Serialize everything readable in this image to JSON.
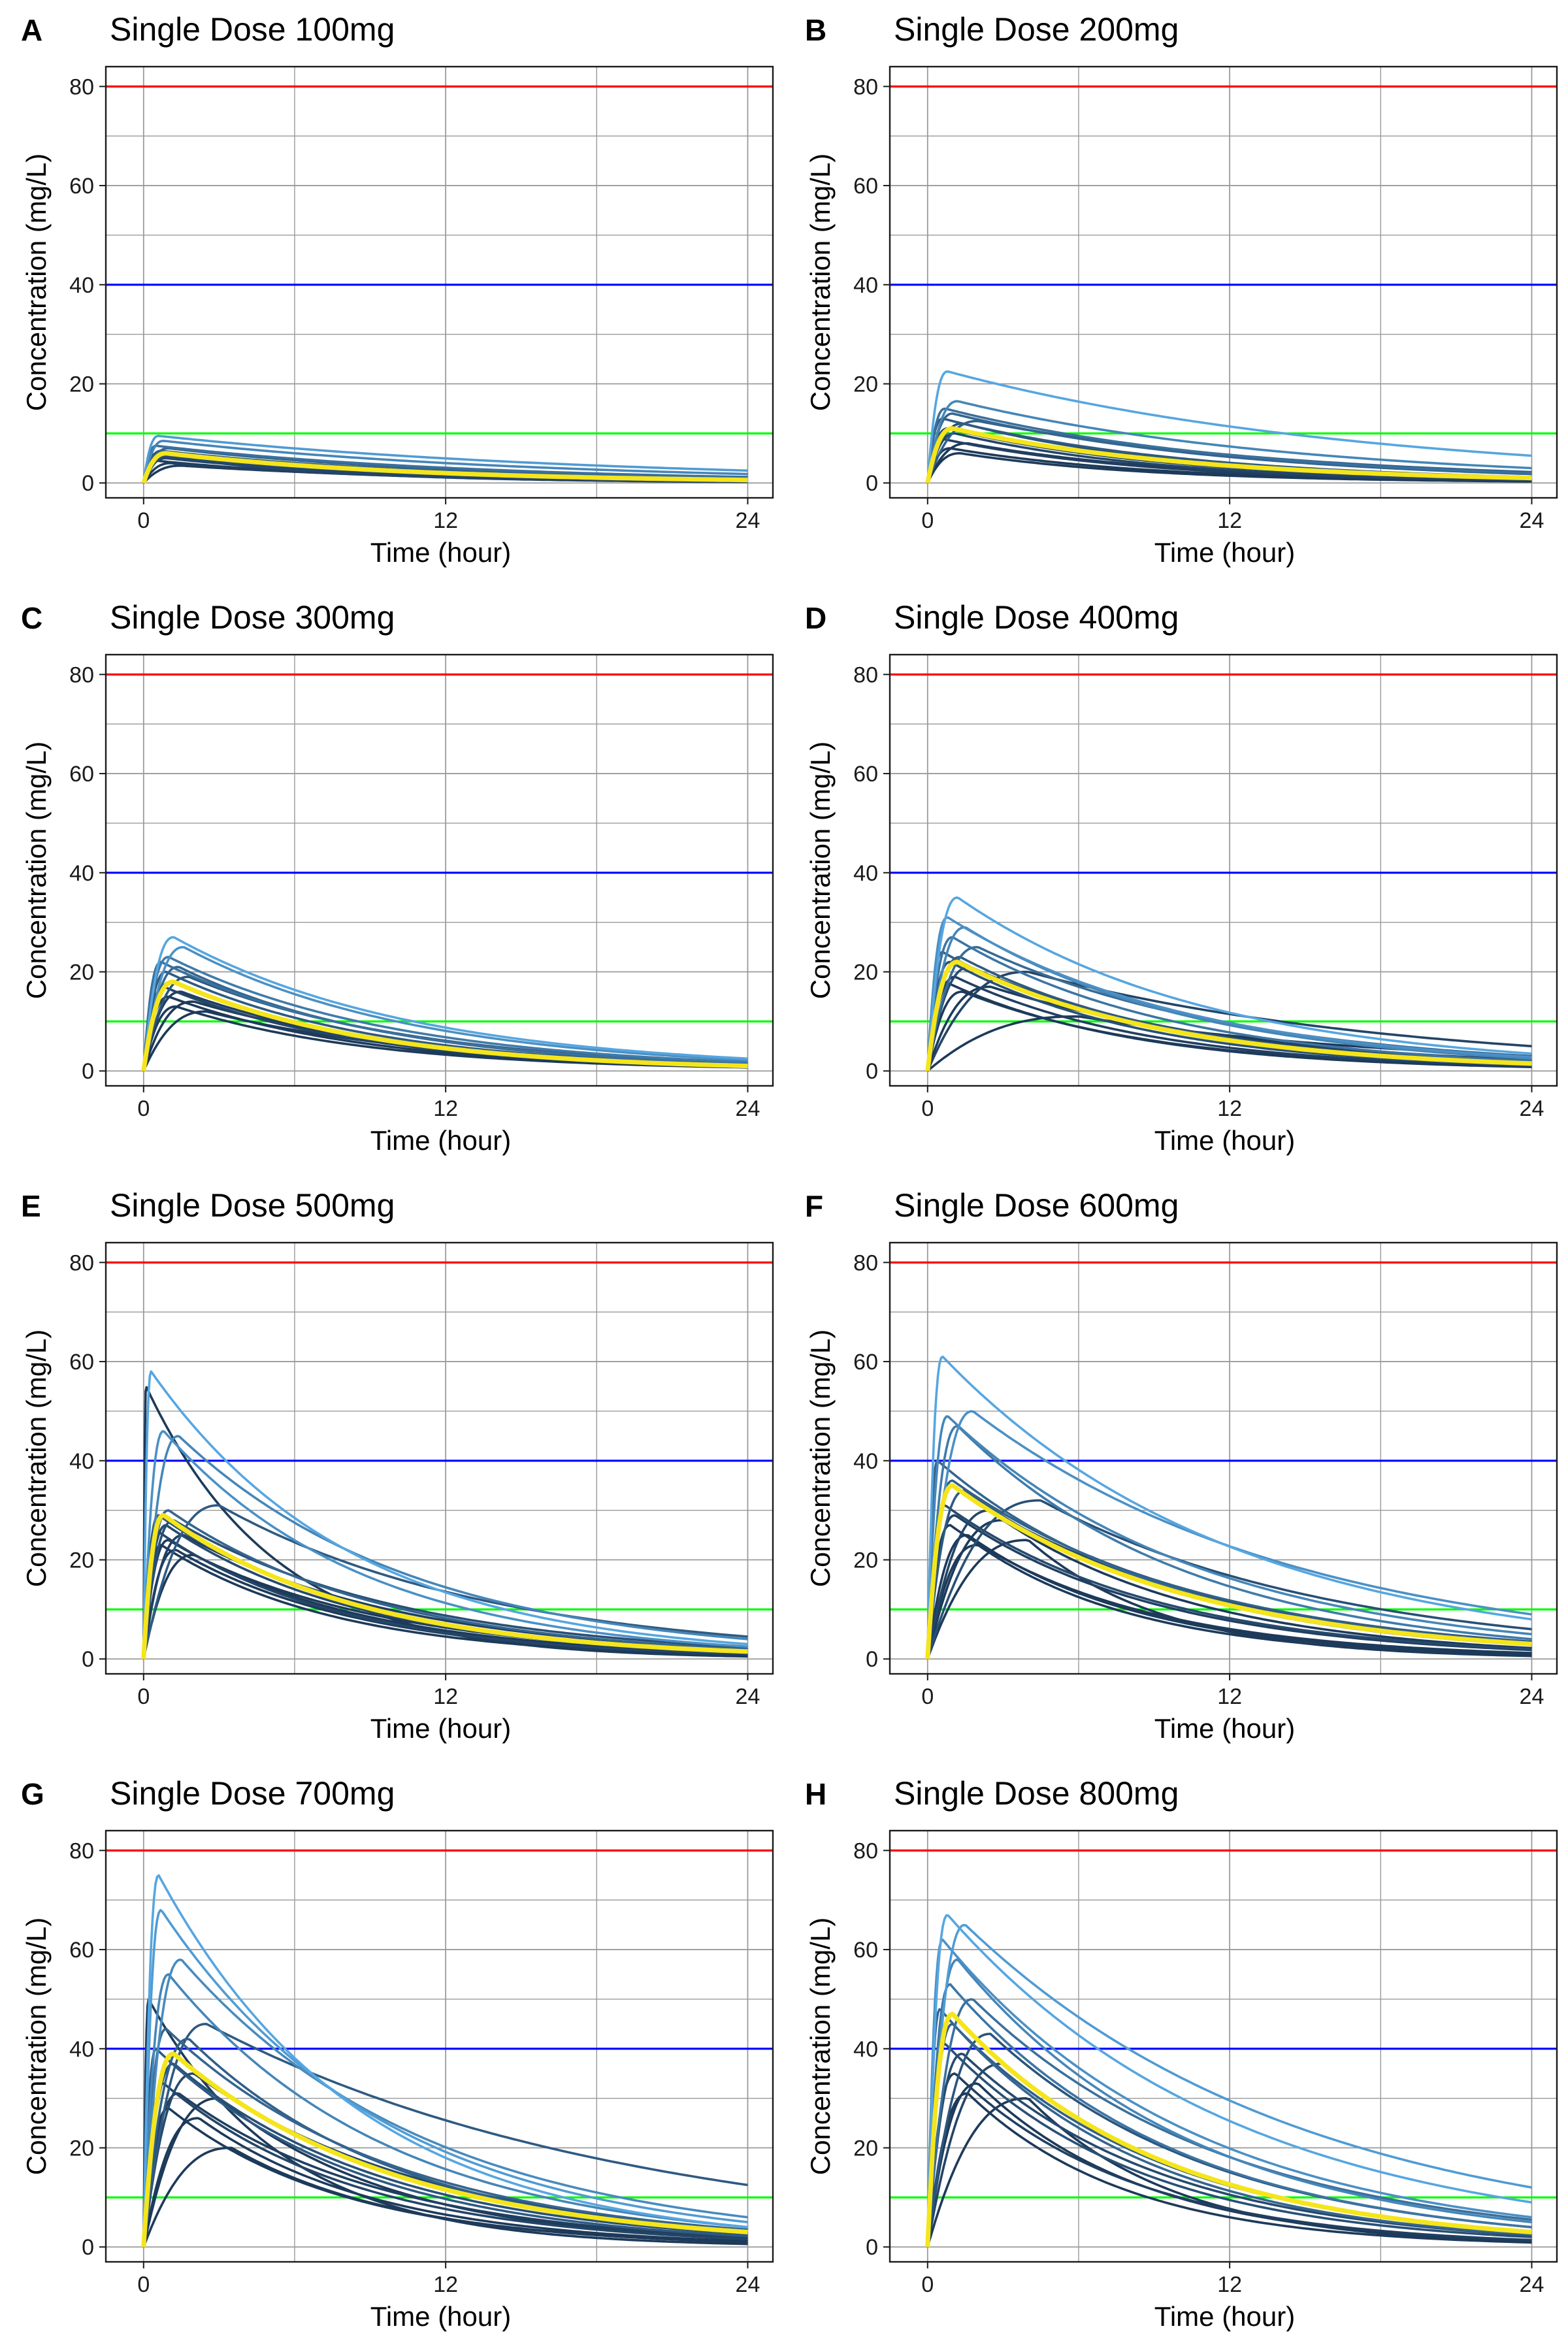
{
  "figure": {
    "colors": {
      "max_line": "#ff0000",
      "mid_line": "#0000ff",
      "min_line": "#00ff00",
      "mean_curve": "#f5e51b",
      "individual_dark": "#1d3a5a",
      "individual_light": "#56a6e0",
      "grid": "#9a9a9a",
      "border": "#1a1a1a"
    }
  },
  "chart_data": [
    {
      "type": "line",
      "panel": "A",
      "title": "Single Dose 100mg",
      "xlabel": "Time (hour)",
      "ylabel": "Concentration (mg/L)",
      "xlim": [
        -1.5,
        25
      ],
      "ylim": [
        -3,
        84
      ],
      "xticks": [
        0,
        12,
        24
      ],
      "yticks": [
        0,
        20,
        40,
        60,
        80
      ],
      "reference_lines": [
        80,
        40,
        10
      ],
      "mean": {
        "cmax": 6,
        "tmax": 0.9,
        "c24": 0.6
      },
      "subjects": [
        {
          "cmax": 9.5,
          "tmax": 0.6,
          "c24": 2.5,
          "shade": 0.9
        },
        {
          "cmax": 8.5,
          "tmax": 0.8,
          "c24": 1.8,
          "shade": 0.7
        },
        {
          "cmax": 7.5,
          "tmax": 0.5,
          "c24": 1.2,
          "shade": 0.5
        },
        {
          "cmax": 7,
          "tmax": 1.0,
          "c24": 1.0,
          "shade": 0.4
        },
        {
          "cmax": 6.5,
          "tmax": 0.7,
          "c24": 0.8,
          "shade": 0.3
        },
        {
          "cmax": 6,
          "tmax": 1.2,
          "c24": 0.6,
          "shade": 0.2
        },
        {
          "cmax": 5.5,
          "tmax": 0.6,
          "c24": 0.5,
          "shade": 0.15
        },
        {
          "cmax": 5,
          "tmax": 0.9,
          "c24": 0.4,
          "shade": 0.1
        },
        {
          "cmax": 4.5,
          "tmax": 0.5,
          "c24": 0.3,
          "shade": 0.05
        },
        {
          "cmax": 4,
          "tmax": 1.1,
          "c24": 0.3,
          "shade": 0.05
        },
        {
          "cmax": 3.5,
          "tmax": 1.5,
          "c24": 0.4,
          "shade": 0.0
        },
        {
          "cmax": 5.8,
          "tmax": 0.4,
          "c24": 0.2,
          "shade": 0.1
        }
      ]
    },
    {
      "type": "line",
      "panel": "B",
      "title": "Single Dose 200mg",
      "xlabel": "Time (hour)",
      "ylabel": "Concentration (mg/L)",
      "xlim": [
        -1.5,
        25
      ],
      "ylim": [
        -3,
        84
      ],
      "xticks": [
        0,
        12,
        24
      ],
      "yticks": [
        0,
        20,
        40,
        60,
        80
      ],
      "reference_lines": [
        80,
        40,
        10
      ],
      "mean": {
        "cmax": 11,
        "tmax": 1.0,
        "c24": 1.0
      },
      "subjects": [
        {
          "cmax": 22.5,
          "tmax": 0.8,
          "c24": 5.5,
          "shade": 1.0
        },
        {
          "cmax": 16.5,
          "tmax": 1.2,
          "c24": 3.0,
          "shade": 0.7
        },
        {
          "cmax": 15,
          "tmax": 0.7,
          "c24": 2.0,
          "shade": 0.5
        },
        {
          "cmax": 14,
          "tmax": 1.0,
          "c24": 1.8,
          "shade": 0.4
        },
        {
          "cmax": 13,
          "tmax": 0.6,
          "c24": 1.2,
          "shade": 0.3
        },
        {
          "cmax": 12,
          "tmax": 1.4,
          "c24": 1.0,
          "shade": 0.2
        },
        {
          "cmax": 11,
          "tmax": 0.8,
          "c24": 0.8,
          "shade": 0.15
        },
        {
          "cmax": 10,
          "tmax": 1.1,
          "c24": 0.6,
          "shade": 0.1
        },
        {
          "cmax": 9,
          "tmax": 0.5,
          "c24": 0.5,
          "shade": 0.05
        },
        {
          "cmax": 8,
          "tmax": 1.6,
          "c24": 0.6,
          "shade": 0.0
        },
        {
          "cmax": 7,
          "tmax": 0.9,
          "c24": 0.4,
          "shade": 0.0
        },
        {
          "cmax": 12.5,
          "tmax": 2.0,
          "c24": 2.2,
          "shade": 0.35
        },
        {
          "cmax": 6,
          "tmax": 1.3,
          "c24": 0.3,
          "shade": 0.0
        }
      ]
    },
    {
      "type": "line",
      "panel": "C",
      "title": "Single Dose 300mg",
      "xlabel": "Time (hour)",
      "ylabel": "Concentration (mg/L)",
      "xlim": [
        -1.5,
        25
      ],
      "ylim": [
        -3,
        84
      ],
      "xticks": [
        0,
        12,
        24
      ],
      "yticks": [
        0,
        20,
        40,
        60,
        80
      ],
      "reference_lines": [
        80,
        40,
        10
      ],
      "mean": {
        "cmax": 18,
        "tmax": 1.2,
        "c24": 1.0
      },
      "subjects": [
        {
          "cmax": 27,
          "tmax": 1.2,
          "c24": 2.5,
          "shade": 1.0
        },
        {
          "cmax": 25,
          "tmax": 1.6,
          "c24": 2.2,
          "shade": 0.8
        },
        {
          "cmax": 23,
          "tmax": 1.0,
          "c24": 1.8,
          "shade": 0.6
        },
        {
          "cmax": 22,
          "tmax": 0.7,
          "c24": 1.5,
          "shade": 0.5
        },
        {
          "cmax": 21,
          "tmax": 1.4,
          "c24": 1.4,
          "shade": 0.4
        },
        {
          "cmax": 20,
          "tmax": 0.9,
          "c24": 1.2,
          "shade": 0.3
        },
        {
          "cmax": 19,
          "tmax": 1.8,
          "c24": 1.6,
          "shade": 0.25
        },
        {
          "cmax": 18,
          "tmax": 1.1,
          "c24": 1.0,
          "shade": 0.2
        },
        {
          "cmax": 17,
          "tmax": 0.8,
          "c24": 0.9,
          "shade": 0.1
        },
        {
          "cmax": 16,
          "tmax": 1.5,
          "c24": 1.1,
          "shade": 0.05
        },
        {
          "cmax": 15,
          "tmax": 1.0,
          "c24": 0.8,
          "shade": 0.0
        },
        {
          "cmax": 14,
          "tmax": 2.0,
          "c24": 1.3,
          "shade": 0.0
        },
        {
          "cmax": 13,
          "tmax": 1.3,
          "c24": 0.7,
          "shade": 0.0
        },
        {
          "cmax": 12,
          "tmax": 2.5,
          "c24": 1.2,
          "shade": 0.0
        }
      ]
    },
    {
      "type": "line",
      "panel": "D",
      "title": "Single Dose 400mg",
      "xlabel": "Time (hour)",
      "ylabel": "Concentration (mg/L)",
      "xlim": [
        -1.5,
        25
      ],
      "ylim": [
        -3,
        84
      ],
      "xticks": [
        0,
        12,
        24
      ],
      "yticks": [
        0,
        20,
        40,
        60,
        80
      ],
      "reference_lines": [
        80,
        40,
        10
      ],
      "mean": {
        "cmax": 22,
        "tmax": 1.2,
        "c24": 1.5
      },
      "subjects": [
        {
          "cmax": 35,
          "tmax": 1.2,
          "c24": 3.5,
          "shade": 1.0
        },
        {
          "cmax": 31,
          "tmax": 0.8,
          "c24": 2.8,
          "shade": 0.8
        },
        {
          "cmax": 29,
          "tmax": 1.5,
          "c24": 2.5,
          "shade": 0.7
        },
        {
          "cmax": 27,
          "tmax": 1.0,
          "c24": 2.0,
          "shade": 0.55
        },
        {
          "cmax": 25,
          "tmax": 2.0,
          "c24": 3.0,
          "shade": 0.45
        },
        {
          "cmax": 24,
          "tmax": 0.6,
          "c24": 1.4,
          "shade": 0.35
        },
        {
          "cmax": 23,
          "tmax": 1.3,
          "c24": 1.6,
          "shade": 0.3
        },
        {
          "cmax": 22,
          "tmax": 0.9,
          "c24": 1.2,
          "shade": 0.2
        },
        {
          "cmax": 21,
          "tmax": 1.7,
          "c24": 1.8,
          "shade": 0.15
        },
        {
          "cmax": 20,
          "tmax": 4.0,
          "c24": 5.0,
          "shade": 0.1
        },
        {
          "cmax": 19,
          "tmax": 1.1,
          "c24": 1.0,
          "shade": 0.05
        },
        {
          "cmax": 18,
          "tmax": 0.7,
          "c24": 0.8,
          "shade": 0.0
        },
        {
          "cmax": 17,
          "tmax": 2.5,
          "c24": 2.2,
          "shade": 0.0
        },
        {
          "cmax": 16,
          "tmax": 1.4,
          "c24": 0.9,
          "shade": 0.0
        },
        {
          "cmax": 11,
          "tmax": 6.0,
          "c24": 3.0,
          "shade": 0.0
        }
      ]
    },
    {
      "type": "line",
      "panel": "E",
      "title": "Single Dose 500mg",
      "xlabel": "Time (hour)",
      "ylabel": "Concentration (mg/L)",
      "xlim": [
        -1.5,
        25
      ],
      "ylim": [
        -3,
        84
      ],
      "xticks": [
        0,
        12,
        24
      ],
      "yticks": [
        0,
        20,
        40,
        60,
        80
      ],
      "reference_lines": [
        80,
        40,
        10
      ],
      "mean": {
        "cmax": 29,
        "tmax": 0.8,
        "c24": 1.5
      },
      "subjects": [
        {
          "cmax": 58,
          "tmax": 0.3,
          "c24": 3.0,
          "shade": 1.0
        },
        {
          "cmax": 46,
          "tmax": 0.8,
          "c24": 2.5,
          "shade": 0.8
        },
        {
          "cmax": 45,
          "tmax": 1.4,
          "c24": 4.0,
          "shade": 0.7
        },
        {
          "cmax": 31,
          "tmax": 3.0,
          "c24": 4.5,
          "shade": 0.3
        },
        {
          "cmax": 30,
          "tmax": 1.0,
          "c24": 2.0,
          "shade": 0.4
        },
        {
          "cmax": 29,
          "tmax": 0.6,
          "c24": 1.6,
          "shade": 0.25
        },
        {
          "cmax": 28,
          "tmax": 1.2,
          "c24": 2.4,
          "shade": 0.2
        },
        {
          "cmax": 27,
          "tmax": 0.9,
          "c24": 1.4,
          "shade": 0.15
        },
        {
          "cmax": 26,
          "tmax": 0.5,
          "c24": 1.0,
          "shade": 0.1
        },
        {
          "cmax": 25,
          "tmax": 1.6,
          "c24": 2.0,
          "shade": 0.05
        },
        {
          "cmax": 24,
          "tmax": 1.0,
          "c24": 1.2,
          "shade": 0.0
        },
        {
          "cmax": 23,
          "tmax": 0.7,
          "c24": 0.8,
          "shade": 0.0
        },
        {
          "cmax": 22,
          "tmax": 1.3,
          "c24": 1.0,
          "shade": 0.0
        },
        {
          "cmax": 55,
          "tmax": 0.1,
          "c24": 0.5,
          "shade": 0.0
        },
        {
          "cmax": 21,
          "tmax": 2.0,
          "c24": 1.5,
          "shade": 0.0
        }
      ]
    },
    {
      "type": "line",
      "panel": "F",
      "title": "Single Dose 600mg",
      "xlabel": "Time (hour)",
      "ylabel": "Concentration (mg/L)",
      "xlim": [
        -1.5,
        25
      ],
      "ylim": [
        -3,
        84
      ],
      "xticks": [
        0,
        12,
        24
      ],
      "yticks": [
        0,
        20,
        40,
        60,
        80
      ],
      "reference_lines": [
        80,
        40,
        10
      ],
      "mean": {
        "cmax": 35,
        "tmax": 1.0,
        "c24": 3.0
      },
      "subjects": [
        {
          "cmax": 61,
          "tmax": 0.6,
          "c24": 8.0,
          "shade": 1.0
        },
        {
          "cmax": 50,
          "tmax": 1.8,
          "c24": 9.0,
          "shade": 0.8
        },
        {
          "cmax": 49,
          "tmax": 0.8,
          "c24": 5.0,
          "shade": 0.7
        },
        {
          "cmax": 47,
          "tmax": 1.2,
          "c24": 4.0,
          "shade": 0.6
        },
        {
          "cmax": 40,
          "tmax": 0.4,
          "c24": 3.0,
          "shade": 0.4
        },
        {
          "cmax": 36,
          "tmax": 1.0,
          "c24": 3.5,
          "shade": 0.35
        },
        {
          "cmax": 34,
          "tmax": 1.5,
          "c24": 2.8,
          "shade": 0.3
        },
        {
          "cmax": 32,
          "tmax": 4.5,
          "c24": 6.0,
          "shade": 0.2
        },
        {
          "cmax": 31,
          "tmax": 0.7,
          "c24": 2.0,
          "shade": 0.15
        },
        {
          "cmax": 30,
          "tmax": 2.5,
          "c24": 3.5,
          "shade": 0.1
        },
        {
          "cmax": 29,
          "tmax": 1.1,
          "c24": 1.8,
          "shade": 0.05
        },
        {
          "cmax": 28,
          "tmax": 3.0,
          "c24": 2.2,
          "shade": 0.0
        },
        {
          "cmax": 27,
          "tmax": 0.9,
          "c24": 1.2,
          "shade": 0.0
        },
        {
          "cmax": 25,
          "tmax": 1.6,
          "c24": 1.0,
          "shade": 0.0
        },
        {
          "cmax": 24,
          "tmax": 4.0,
          "c24": 0.6,
          "shade": 0.0
        },
        {
          "cmax": 23,
          "tmax": 2.0,
          "c24": 0.8,
          "shade": 0.0
        }
      ]
    },
    {
      "type": "line",
      "panel": "G",
      "title": "Single Dose 700mg",
      "xlabel": "Time (hour)",
      "ylabel": "Concentration (mg/L)",
      "xlim": [
        -1.5,
        25
      ],
      "ylim": [
        -3,
        84
      ],
      "xticks": [
        0,
        12,
        24
      ],
      "yticks": [
        0,
        20,
        40,
        60,
        80
      ],
      "reference_lines": [
        80,
        40,
        10
      ],
      "mean": {
        "cmax": 39,
        "tmax": 1.2,
        "c24": 3.0
      },
      "subjects": [
        {
          "cmax": 75,
          "tmax": 0.6,
          "c24": 4.0,
          "shade": 1.0
        },
        {
          "cmax": 68,
          "tmax": 0.7,
          "c24": 5.0,
          "shade": 0.9
        },
        {
          "cmax": 58,
          "tmax": 1.5,
          "c24": 6.0,
          "shade": 0.75
        },
        {
          "cmax": 55,
          "tmax": 1.0,
          "c24": 4.0,
          "shade": 0.7
        },
        {
          "cmax": 45,
          "tmax": 2.5,
          "c24": 12.5,
          "shade": 0.3
        },
        {
          "cmax": 44,
          "tmax": 0.9,
          "c24": 3.5,
          "shade": 0.4
        },
        {
          "cmax": 42,
          "tmax": 1.8,
          "c24": 3.0,
          "shade": 0.35
        },
        {
          "cmax": 40,
          "tmax": 0.5,
          "c24": 2.2,
          "shade": 0.3
        },
        {
          "cmax": 37,
          "tmax": 1.2,
          "c24": 2.6,
          "shade": 0.2
        },
        {
          "cmax": 35,
          "tmax": 2.0,
          "c24": 3.5,
          "shade": 0.15
        },
        {
          "cmax": 33,
          "tmax": 0.8,
          "c24": 1.6,
          "shade": 0.1
        },
        {
          "cmax": 31,
          "tmax": 1.4,
          "c24": 2.0,
          "shade": 0.05
        },
        {
          "cmax": 30,
          "tmax": 3.0,
          "c24": 1.6,
          "shade": 0.0
        },
        {
          "cmax": 28,
          "tmax": 1.0,
          "c24": 1.0,
          "shade": 0.0
        },
        {
          "cmax": 26,
          "tmax": 2.2,
          "c24": 1.2,
          "shade": 0.0
        },
        {
          "cmax": 20,
          "tmax": 3.5,
          "c24": 1.0,
          "shade": 0.0
        },
        {
          "cmax": 50,
          "tmax": 0.2,
          "c24": 0.6,
          "shade": 0.0
        }
      ]
    },
    {
      "type": "line",
      "panel": "H",
      "title": "Single Dose 800mg",
      "xlabel": "Time (hour)",
      "ylabel": "Concentration (mg/L)",
      "xlim": [
        -1.5,
        25
      ],
      "ylim": [
        -3,
        84
      ],
      "xticks": [
        0,
        12,
        24
      ],
      "yticks": [
        0,
        20,
        40,
        60,
        80
      ],
      "reference_lines": [
        80,
        40,
        10
      ],
      "mean": {
        "cmax": 47,
        "tmax": 1.0,
        "c24": 3.0
      },
      "subjects": [
        {
          "cmax": 67,
          "tmax": 0.8,
          "c24": 9.0,
          "shade": 1.0
        },
        {
          "cmax": 65,
          "tmax": 1.5,
          "c24": 12.0,
          "shade": 0.9
        },
        {
          "cmax": 62,
          "tmax": 0.6,
          "c24": 6.0,
          "shade": 0.8
        },
        {
          "cmax": 58,
          "tmax": 1.2,
          "c24": 5.0,
          "shade": 0.7
        },
        {
          "cmax": 53,
          "tmax": 0.9,
          "c24": 4.0,
          "shade": 0.55
        },
        {
          "cmax": 50,
          "tmax": 1.8,
          "c24": 5.5,
          "shade": 0.5
        },
        {
          "cmax": 48,
          "tmax": 0.5,
          "c24": 2.5,
          "shade": 0.4
        },
        {
          "cmax": 45,
          "tmax": 1.0,
          "c24": 3.0,
          "shade": 0.35
        },
        {
          "cmax": 43,
          "tmax": 2.5,
          "c24": 4.0,
          "shade": 0.25
        },
        {
          "cmax": 41,
          "tmax": 0.7,
          "c24": 2.0,
          "shade": 0.2
        },
        {
          "cmax": 39,
          "tmax": 1.4,
          "c24": 2.4,
          "shade": 0.15
        },
        {
          "cmax": 37,
          "tmax": 3.0,
          "c24": 3.0,
          "shade": 0.1
        },
        {
          "cmax": 35,
          "tmax": 1.1,
          "c24": 1.4,
          "shade": 0.05
        },
        {
          "cmax": 33,
          "tmax": 2.0,
          "c24": 1.2,
          "shade": 0.0
        },
        {
          "cmax": 31,
          "tmax": 1.6,
          "c24": 0.9,
          "shade": 0.0
        },
        {
          "cmax": 30,
          "tmax": 4.0,
          "c24": 1.0,
          "shade": 0.0
        }
      ]
    }
  ]
}
